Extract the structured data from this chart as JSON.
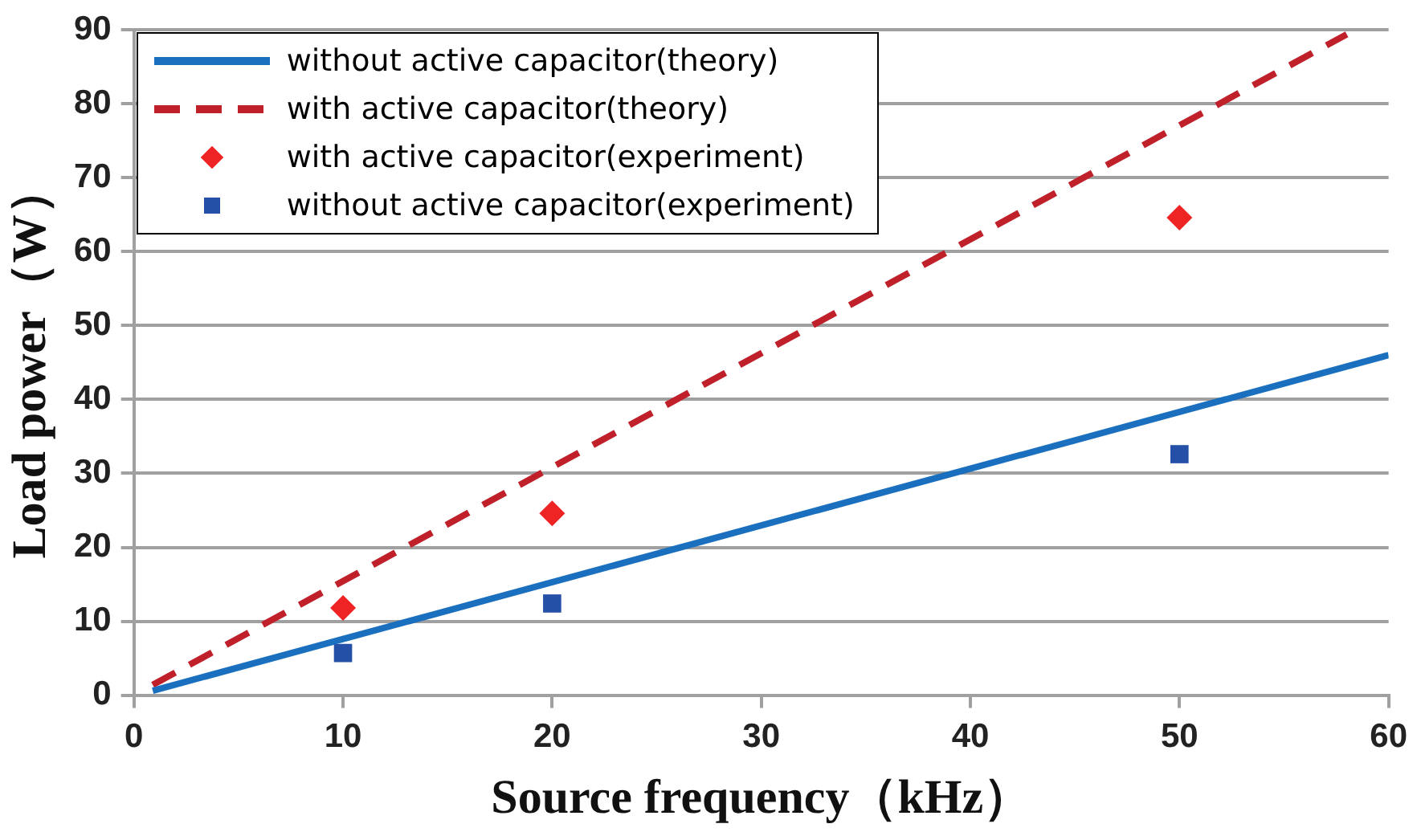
{
  "chart_data": {
    "type": "scatter",
    "xlabel": "Source frequency（kHz）",
    "ylabel": "Load power（W）",
    "xlim": [
      0,
      60
    ],
    "xticks": [
      0,
      10,
      20,
      30,
      40,
      50,
      60
    ],
    "ylim": [
      0,
      90
    ],
    "yticks": [
      0,
      10,
      20,
      30,
      40,
      50,
      60,
      70,
      80,
      90
    ],
    "grid": "y",
    "legend": "top left",
    "series": [
      {
        "name": "without active capacitor(theory)",
        "type": "line",
        "color": "#1a6fbf",
        "line_style": "solid",
        "marker": "none",
        "x": [
          0.9,
          60
        ],
        "values": [
          0.6,
          46
        ]
      },
      {
        "name": "with active capacitor(theory)",
        "type": "line",
        "color": "#c0202a",
        "line_style": "dashed",
        "marker": "none",
        "x": [
          0.9,
          58
        ],
        "values": [
          1.4,
          89.4
        ]
      },
      {
        "name": "with active capacitor(experiment)",
        "type": "scatter",
        "color": "#ee2424",
        "marker": "diamond",
        "x": [
          10,
          20,
          50
        ],
        "values": [
          11.8,
          24.6,
          64.6
        ]
      },
      {
        "name": "without active capacitor(experiment)",
        "type": "scatter",
        "color": "#2450a8",
        "marker": "square",
        "x": [
          10,
          20,
          50
        ],
        "values": [
          5.7,
          12.4,
          32.6
        ]
      }
    ]
  }
}
